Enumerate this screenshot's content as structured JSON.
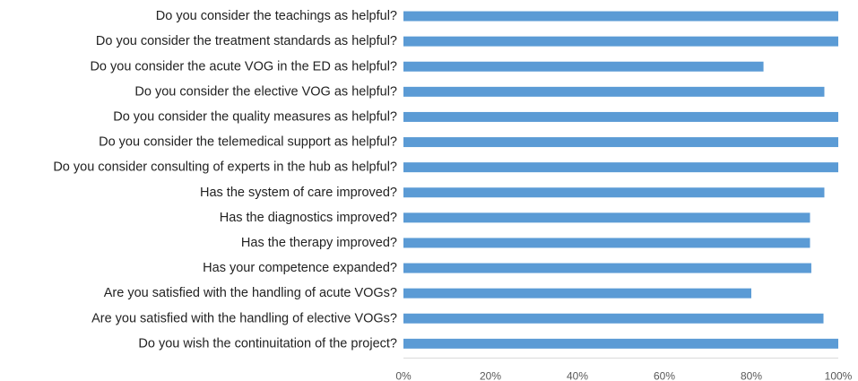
{
  "chart_data": {
    "type": "bar",
    "orientation": "horizontal",
    "categories": [
      "Do you consider the teachings as helpful?",
      "Do you consider the treatment standards as helpful?",
      "Do you consider the acute VOG in the ED as helpful?",
      "Do you consider the elective VOG as helpful?",
      "Do you consider the quality measures as helpful?",
      "Do you consider the telemedical support as helpful?",
      "Do you consider consulting of experts in the hub as helpful?",
      "Has the system of care improved?",
      "Has the diagnostics improved?",
      "Has the therapy improved?",
      "Has your competence expanded?",
      "Are you satisfied with the handling of acute VOGs?",
      "Are you satisfied with the handling of elective VOGs?",
      "Do you wish the continuitation of the project?"
    ],
    "values": [
      100,
      100,
      82.8,
      96.8,
      100,
      100,
      100,
      96.8,
      93.5,
      93.5,
      93.8,
      80,
      96.6,
      100
    ],
    "xlim": [
      0,
      100
    ],
    "x_ticks": [
      "0%",
      "20%",
      "40%",
      "60%",
      "80%",
      "100%"
    ],
    "bar_color": "#5B9BD5",
    "grid": false,
    "legend": "none"
  }
}
